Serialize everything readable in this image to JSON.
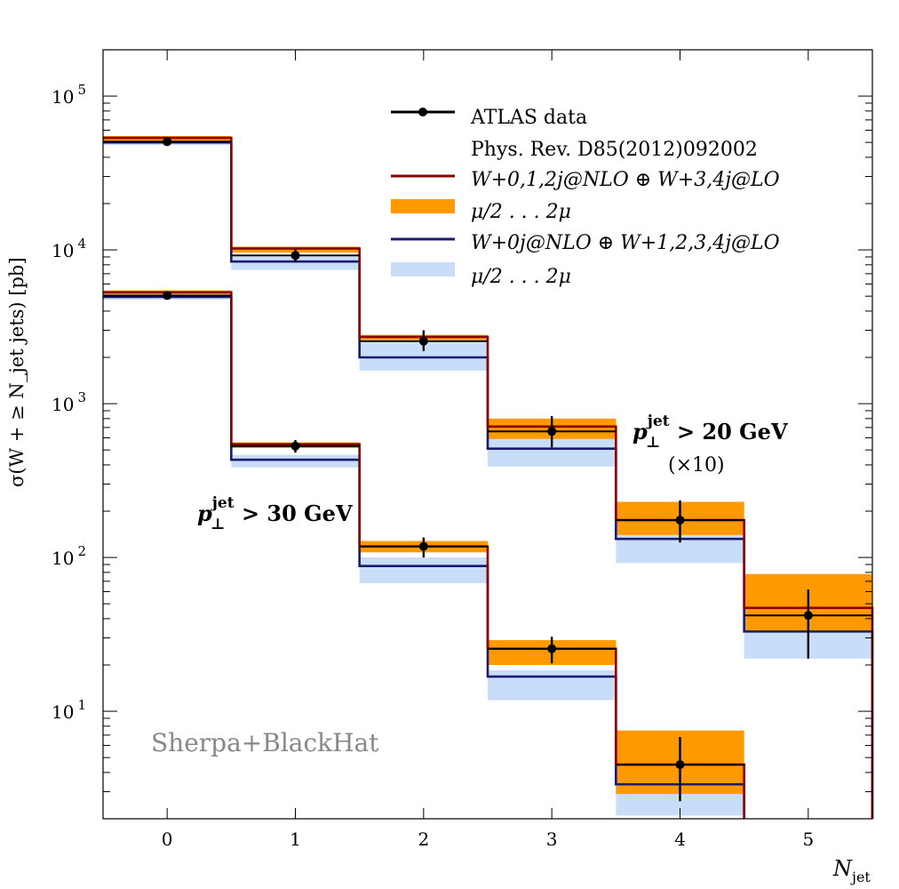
{
  "chart_data": {
    "type": "step",
    "xlabel": "N",
    "xlabel_sub": "jet",
    "ylabel": "σ(W + ≥ N_jet jets) [pb]",
    "yscale": "log",
    "ylim": [
      2,
      200000
    ],
    "xlim": [
      -0.5,
      5.5
    ],
    "x_ticks": [
      "0",
      "1",
      "2",
      "3",
      "4",
      "5"
    ],
    "y_ticks": [
      {
        "value": 10,
        "base": "10",
        "exp": "1"
      },
      {
        "value": 100,
        "base": "10",
        "exp": "2"
      },
      {
        "value": 1000,
        "base": "10",
        "exp": "3"
      },
      {
        "value": 10000,
        "base": "10",
        "exp": "4"
      },
      {
        "value": 100000,
        "base": "10",
        "exp": "5"
      }
    ],
    "colors": {
      "data": "#000000",
      "nlo_red": "#8b0000",
      "band_orange": "#ff9900",
      "lo_blue": "#1a1a6e",
      "band_blue": "#c8ddf8",
      "watermark": "#888888"
    },
    "legend": {
      "position": "top-right",
      "entries": [
        {
          "kind": "data",
          "label": "ATLAS data"
        },
        {
          "kind": "text",
          "label": "Phys. Rev. D85(2012)092002"
        },
        {
          "kind": "line-red",
          "label": "W+0,1,2j@NLO ⊕ W+3,4j@LO"
        },
        {
          "kind": "band-orange",
          "label": "μ/2 . . . 2μ"
        },
        {
          "kind": "line-blue",
          "label": "W+0j@NLO ⊕ W+1,2,3,4j@LO"
        },
        {
          "kind": "band-blue",
          "label": "μ/2 . . . 2μ"
        }
      ]
    },
    "annotations": {
      "pt20": {
        "p": "p",
        "sup": "jet",
        "sub": "⊥",
        "rest": " > 20 GeV",
        "scale": "(×10)"
      },
      "pt30": {
        "p": "p",
        "sup": "jet",
        "sub": "⊥",
        "rest": " > 30 GeV"
      }
    },
    "watermark": "Sherpa+BlackHat",
    "series": [
      {
        "group": "pt20_x10",
        "bins": [
          0,
          1,
          2,
          3,
          4,
          5
        ],
        "data": [
          50500,
          9200,
          2550,
          660,
          175,
          42
        ],
        "data_err_low": [
          48500,
          8300,
          2200,
          520,
          125,
          22
        ],
        "data_err_high": [
          52500,
          10100,
          3000,
          830,
          235,
          62
        ],
        "nlo": [
          53500,
          10200,
          2720,
          710,
          175,
          47
        ],
        "nlo_band_low": [
          51000,
          9600,
          2600,
          590,
          140,
          33
        ],
        "nlo_band_high": [
          55000,
          10500,
          2800,
          800,
          230,
          78
        ],
        "lo": [
          50000,
          8400,
          2000,
          510,
          132,
          33
        ],
        "lo_band_low": [
          48000,
          7400,
          1640,
          390,
          92,
          22
        ],
        "lo_band_high": [
          52000,
          9000,
          2500,
          620,
          165,
          40
        ]
      },
      {
        "group": "pt30",
        "bins": [
          0,
          1,
          2,
          3,
          4
        ],
        "data": [
          5050,
          530,
          118,
          25.5,
          4.5
        ],
        "data_err_low": [
          4900,
          480,
          100,
          20.5,
          2.6
        ],
        "data_err_high": [
          5200,
          580,
          135,
          30.5,
          6.8
        ],
        "nlo": [
          5300,
          545,
          118,
          25.5,
          4.5
        ],
        "nlo_band_low": [
          5150,
          515,
          108,
          20,
          2.9
        ],
        "nlo_band_high": [
          5450,
          560,
          128,
          29,
          7.5
        ],
        "lo": [
          4950,
          432,
          88,
          16.8,
          3.35
        ],
        "lo_band_low": [
          4750,
          385,
          68,
          11.8,
          2.1
        ],
        "lo_band_high": [
          5100,
          465,
          100,
          18.5,
          3.6
        ]
      }
    ]
  }
}
